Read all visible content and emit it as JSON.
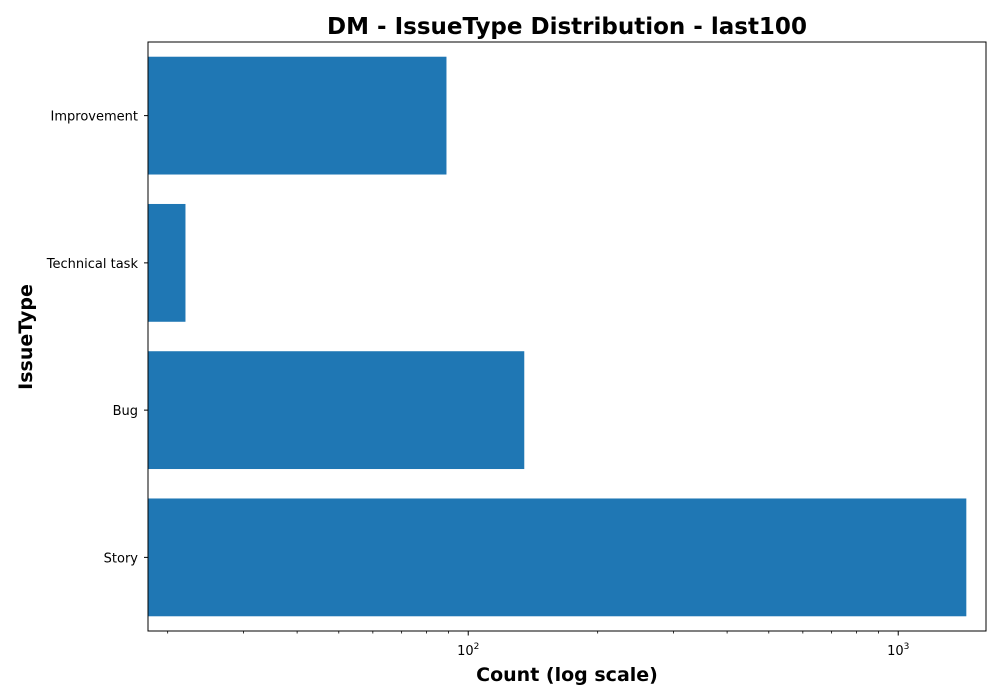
{
  "chart_data": {
    "type": "bar",
    "orientation": "horizontal",
    "title": "DM - IssueType Distribution - last100",
    "xlabel": "Count (log scale)",
    "ylabel": "IssueType",
    "x_scale": "log",
    "xlim": [
      18,
      1600
    ],
    "x_major_ticks": [
      {
        "value": 100,
        "base": "10",
        "exponent": "2"
      },
      {
        "value": 1000,
        "base": "10",
        "exponent": "3"
      }
    ],
    "x_minor_ticks": [
      20,
      30,
      40,
      50,
      60,
      70,
      80,
      90,
      200,
      300,
      400,
      500,
      600,
      700,
      800,
      900
    ],
    "categories": [
      "Story",
      "Bug",
      "Technical task",
      "Improvement"
    ],
    "values": [
      1440,
      135,
      22,
      89
    ],
    "bar_color": "#1f77b4",
    "grid": false,
    "legend": "none"
  }
}
